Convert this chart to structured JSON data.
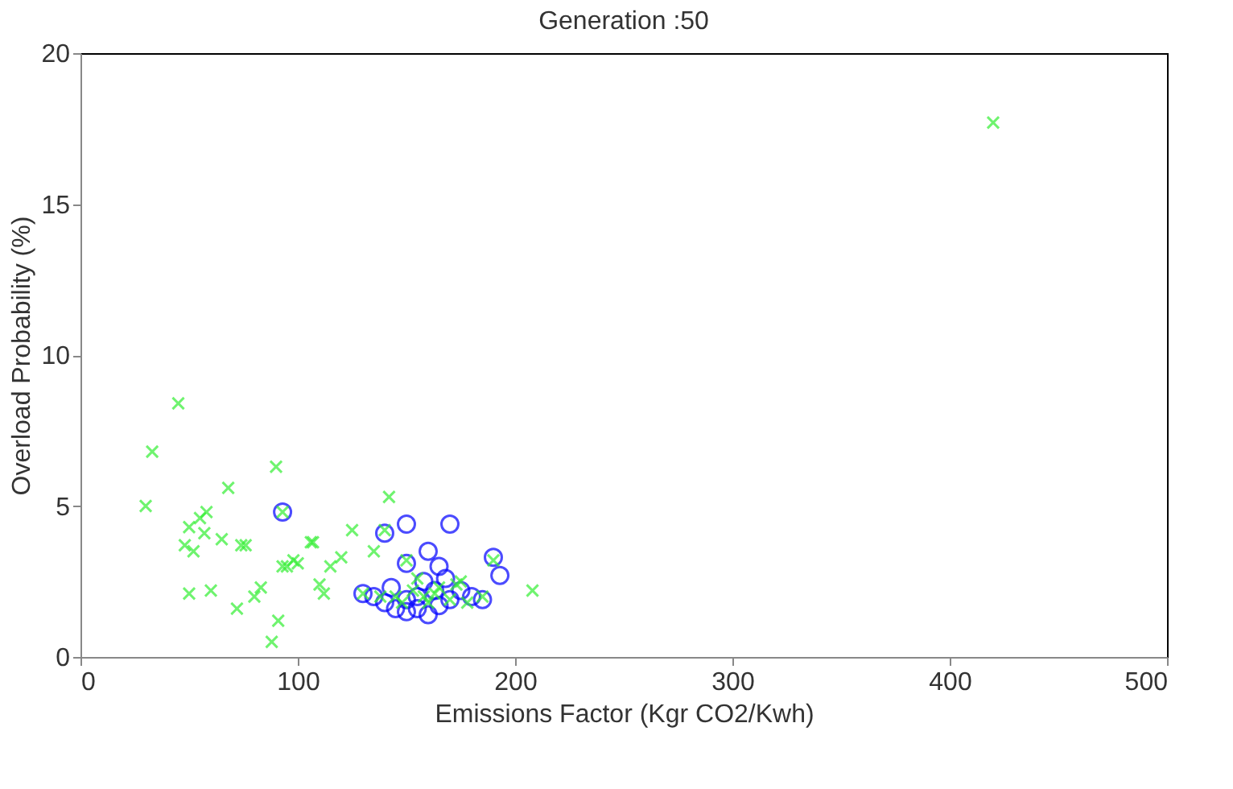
{
  "chart_data": {
    "type": "scatter",
    "title": "Generation :50",
    "xlabel": "Emissions Factor (Kgr CO2/Kwh)",
    "ylabel": "Overload Probability (%)",
    "xlim": [
      0,
      500
    ],
    "xticks": [
      0,
      100,
      200,
      300,
      400,
      500
    ],
    "ylim": [
      0,
      20
    ],
    "yticks": [
      0,
      5,
      10,
      15,
      20
    ],
    "grid": false,
    "series": [
      {
        "color": "#0000ff",
        "marker": "circle",
        "x": [
          93,
          140,
          150,
          170,
          150,
          160,
          165,
          190,
          193,
          135,
          140,
          145,
          150,
          155,
          160,
          165,
          170,
          175,
          180,
          185,
          143,
          158,
          163,
          168,
          130,
          150,
          155
        ],
        "values": [
          4.8,
          4.1,
          4.4,
          4.4,
          3.1,
          3.5,
          3.0,
          3.3,
          2.7,
          2.0,
          1.8,
          1.6,
          1.5,
          1.6,
          1.4,
          1.7,
          1.9,
          2.2,
          2.0,
          1.9,
          2.3,
          2.5,
          2.2,
          2.6,
          2.1,
          1.9,
          2.0
        ]
      },
      {
        "color": "#33ee33",
        "marker": "cross",
        "x": [
          30,
          33,
          45,
          48,
          50,
          50,
          52,
          55,
          57,
          58,
          60,
          65,
          68,
          72,
          74,
          76,
          80,
          83,
          88,
          90,
          91,
          93,
          95,
          98,
          100,
          106,
          107,
          110,
          112,
          115,
          120,
          125,
          130,
          135,
          140,
          142,
          145,
          150,
          155,
          160,
          165,
          170,
          175,
          185,
          190,
          208,
          420,
          93,
          138,
          148,
          153,
          158,
          163,
          173,
          178
        ],
        "values": [
          5.0,
          6.8,
          8.4,
          3.7,
          4.3,
          2.1,
          3.5,
          4.6,
          4.1,
          4.8,
          2.2,
          3.9,
          5.6,
          1.6,
          3.7,
          3.7,
          2.0,
          2.3,
          0.5,
          6.3,
          1.2,
          3.0,
          3.0,
          3.2,
          3.1,
          3.8,
          3.8,
          2.4,
          2.1,
          3.0,
          3.3,
          4.2,
          2.1,
          3.5,
          4.2,
          5.3,
          2.0,
          3.2,
          2.6,
          1.8,
          2.3,
          1.9,
          2.5,
          2.0,
          3.2,
          2.2,
          17.7,
          4.8,
          2.0,
          1.8,
          2.2,
          2.0,
          2.1,
          2.4,
          1.8
        ]
      }
    ]
  }
}
